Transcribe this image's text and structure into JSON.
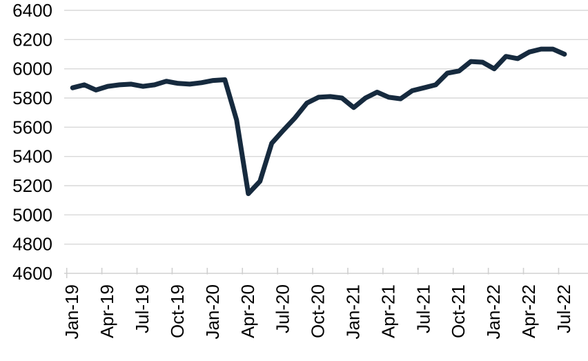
{
  "chart_data": {
    "type": "line",
    "title": "",
    "xlabel": "",
    "ylabel": "",
    "x": [
      "Jan-19",
      "Feb-19",
      "Mar-19",
      "Apr-19",
      "May-19",
      "Jun-19",
      "Jul-19",
      "Aug-19",
      "Sep-19",
      "Oct-19",
      "Nov-19",
      "Dec-19",
      "Jan-20",
      "Feb-20",
      "Mar-20",
      "Apr-20",
      "May-20",
      "Jun-20",
      "Jul-20",
      "Aug-20",
      "Sep-20",
      "Oct-20",
      "Nov-20",
      "Dec-20",
      "Jan-21",
      "Feb-21",
      "Mar-21",
      "Apr-21",
      "May-21",
      "Jun-21",
      "Jul-21",
      "Aug-21",
      "Sep-21",
      "Oct-21",
      "Nov-21",
      "Dec-21",
      "Jan-22",
      "Feb-22",
      "Mar-22",
      "Apr-22",
      "May-22",
      "Jun-22",
      "Jul-22"
    ],
    "series": [
      {
        "name": "series-1",
        "values": [
          5870,
          5890,
          5855,
          5880,
          5890,
          5895,
          5880,
          5890,
          5915,
          5900,
          5895,
          5905,
          5920,
          5925,
          5650,
          5145,
          5230,
          5490,
          5580,
          5665,
          5765,
          5805,
          5810,
          5800,
          5735,
          5800,
          5840,
          5805,
          5795,
          5850,
          5870,
          5890,
          5970,
          5985,
          6050,
          6045,
          6000,
          6085,
          6070,
          6115,
          6135,
          6135,
          6100
        ]
      }
    ],
    "ylim": [
      4600,
      6400
    ],
    "y_ticks": [
      4600,
      4800,
      5000,
      5200,
      5400,
      5600,
      5800,
      6000,
      6200,
      6400
    ],
    "y_tick_labels": [
      "4600",
      "4800",
      "5000",
      "5200",
      "5400",
      "5600",
      "5800",
      "6000",
      "6200",
      "6400"
    ],
    "x_tick_interval": 3,
    "x_tick_labels": [
      "Jan-19",
      "Apr-19",
      "Jul-19",
      "Oct-19",
      "Jan-20",
      "Apr-20",
      "Jul-20",
      "Oct-20",
      "Jan-21",
      "Apr-21",
      "Jul-21",
      "Oct-21",
      "Jan-22",
      "Apr-22",
      "Jul-22"
    ],
    "grid": "horizontal",
    "legend": "none",
    "colors": {
      "line": "#162a3e",
      "grid": "#d9d9d9",
      "axis": "#d0d0d0",
      "label": "#000000"
    }
  }
}
